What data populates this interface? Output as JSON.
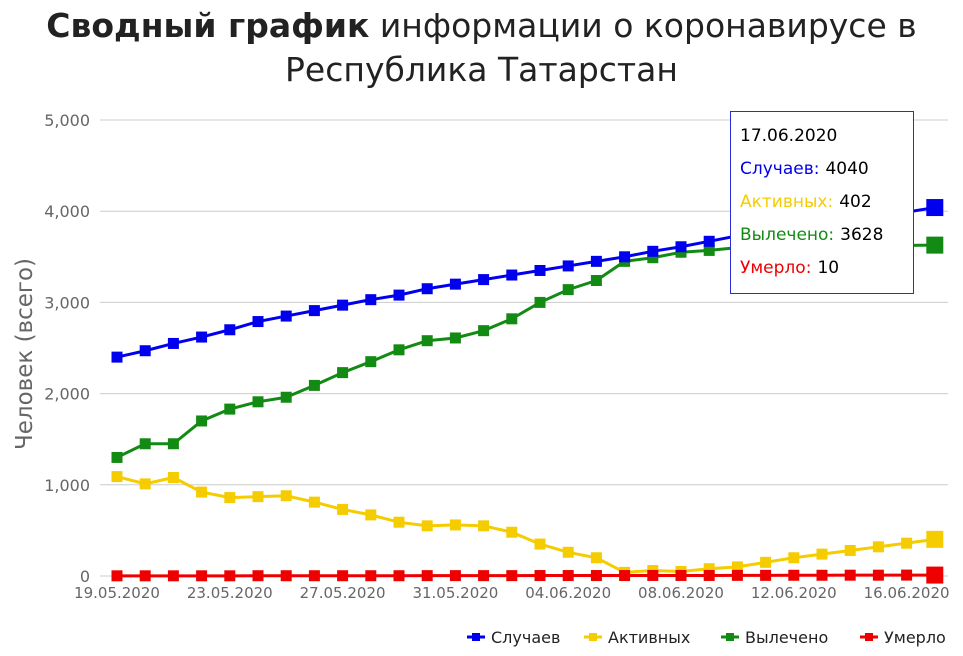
{
  "title": {
    "bold": "Сводный график",
    "line1_rest": "информации о коронавирусе в",
    "line2": "Республика Татарстан"
  },
  "colors": {
    "cases": "#0000ee",
    "active": "#f5cc00",
    "recovered": "#138a13",
    "deaths": "#ee0000",
    "grid": "#cccccc",
    "axis_text": "#666666"
  },
  "chart_data": {
    "type": "line",
    "ylabel": "Человек (всего)",
    "ylim": [
      0,
      5000
    ],
    "yticks": [
      "0",
      "1,000",
      "2,000",
      "3,000",
      "4,000",
      "5,000"
    ],
    "x": [
      "19.05.2020",
      "20.05.2020",
      "21.05.2020",
      "22.05.2020",
      "23.05.2020",
      "24.05.2020",
      "25.05.2020",
      "26.05.2020",
      "27.05.2020",
      "28.05.2020",
      "29.05.2020",
      "30.05.2020",
      "31.05.2020",
      "01.06.2020",
      "02.06.2020",
      "03.06.2020",
      "04.06.2020",
      "05.06.2020",
      "06.06.2020",
      "07.06.2020",
      "08.06.2020",
      "09.06.2020",
      "10.06.2020",
      "11.06.2020",
      "12.06.2020",
      "13.06.2020",
      "14.06.2020",
      "15.06.2020",
      "16.06.2020",
      "17.06.2020"
    ],
    "xtick_labels": [
      "19.05.2020",
      "23.05.2020",
      "27.05.2020",
      "31.05.2020",
      "04.06.2020",
      "08.06.2020",
      "12.06.2020",
      "16.06.2020"
    ],
    "grid": true,
    "legend_position": "bottom-right",
    "series": [
      {
        "name": "Случаев",
        "color": "#0000ee",
        "values": [
          2400,
          2470,
          2550,
          2620,
          2700,
          2790,
          2850,
          2910,
          2970,
          3030,
          3080,
          3150,
          3200,
          3250,
          3300,
          3350,
          3400,
          3450,
          3500,
          3560,
          3610,
          3670,
          3730,
          3780,
          3830,
          3880,
          3920,
          3960,
          3990,
          4040
        ]
      },
      {
        "name": "Активных",
        "color": "#f5cc00",
        "values": [
          1090,
          1010,
          1080,
          920,
          860,
          870,
          880,
          810,
          730,
          670,
          590,
          550,
          560,
          550,
          480,
          350,
          260,
          200,
          40,
          60,
          50,
          80,
          100,
          150,
          200,
          240,
          280,
          320,
          360,
          402
        ]
      },
      {
        "name": "Вылечено",
        "color": "#138a13",
        "values": [
          1300,
          1450,
          1450,
          1700,
          1830,
          1910,
          1960,
          2090,
          2230,
          2350,
          2480,
          2580,
          2610,
          2690,
          2820,
          3000,
          3140,
          3240,
          3450,
          3490,
          3550,
          3570,
          3600,
          3610,
          3610,
          3610,
          3615,
          3620,
          3625,
          3628
        ]
      },
      {
        "name": "Умерло",
        "color": "#ee0000",
        "values": [
          2,
          2,
          2,
          2,
          2,
          3,
          3,
          3,
          3,
          3,
          3,
          4,
          4,
          4,
          4,
          5,
          5,
          5,
          5,
          6,
          6,
          6,
          7,
          7,
          8,
          8,
          9,
          9,
          10,
          10
        ]
      }
    ]
  },
  "tooltip": {
    "date": "17.06.2020",
    "cases_label": "Случаев:",
    "cases_value": "4040",
    "active_label": "Активных:",
    "active_value": "402",
    "recovered_label": "Вылечено:",
    "recovered_value": "3628",
    "deaths_label": "Умерло:",
    "deaths_value": "10"
  }
}
